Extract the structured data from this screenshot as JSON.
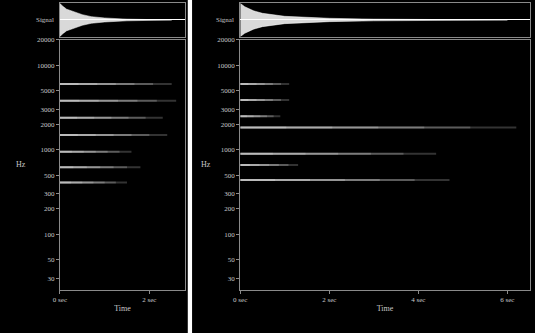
{
  "chart_data": [
    {
      "type": "spectrogram",
      "x_label": "Time",
      "y_label": "Hz",
      "signal_label": "Signal",
      "log": "y",
      "grid": false,
      "xlim": [
        0,
        2.8
      ],
      "xticks": [
        {
          "value": 0,
          "label": "0 sec"
        },
        {
          "value": 2,
          "label": "2 sec"
        }
      ],
      "ylim": [
        22,
        20000
      ],
      "yticks": [
        30,
        50,
        100,
        200,
        300,
        500,
        1000,
        2000,
        3000,
        5000,
        10000,
        20000
      ],
      "signal": {
        "x": [
          0,
          0.05,
          0.15,
          0.3,
          0.5,
          0.7,
          1.0,
          1.5,
          2.0,
          2.5
        ],
        "upper": [
          1,
          0.85,
          0.65,
          0.5,
          0.32,
          0.2,
          0.12,
          0.05,
          0.02,
          0
        ],
        "lower": [
          -1,
          -0.85,
          -0.65,
          -0.5,
          -0.32,
          -0.2,
          -0.12,
          -0.05,
          -0.02,
          0
        ],
        "ylim": [
          -1,
          1
        ]
      },
      "partials": [
        {
          "frequency": 6000,
          "end": 2.5
        },
        {
          "frequency": 3800,
          "end": 2.6
        },
        {
          "frequency": 2400,
          "end": 2.3
        },
        {
          "frequency": 1500,
          "end": 2.4
        },
        {
          "frequency": 950,
          "end": 1.6
        },
        {
          "frequency": 620,
          "end": 1.8
        },
        {
          "frequency": 410,
          "end": 1.5
        }
      ]
    },
    {
      "type": "spectrogram",
      "x_label": "Time",
      "y_label": "Hz",
      "signal_label": "Signal",
      "log": "y",
      "grid": false,
      "xlim": [
        0,
        6.5
      ],
      "xticks": [
        {
          "value": 0,
          "label": "0 sec"
        },
        {
          "value": 2,
          "label": "2 sec"
        },
        {
          "value": 4,
          "label": "4 sec"
        },
        {
          "value": 6,
          "label": "6 sec"
        }
      ],
      "ylim": [
        22,
        20000
      ],
      "yticks": [
        30,
        50,
        100,
        200,
        300,
        500,
        1000,
        2000,
        3000,
        5000,
        10000,
        20000
      ],
      "signal": {
        "x": [
          0,
          0.1,
          0.3,
          0.5,
          1.0,
          1.5,
          2.0,
          3.0,
          4.0,
          5.0,
          6.0
        ],
        "upper": [
          1,
          0.8,
          0.55,
          0.4,
          0.22,
          0.15,
          0.1,
          0.05,
          0.03,
          0.01,
          0
        ],
        "lower": [
          -1,
          -0.8,
          -0.55,
          -0.4,
          -0.22,
          -0.15,
          -0.1,
          -0.05,
          -0.03,
          -0.01,
          0
        ],
        "ylim": [
          -1,
          1
        ]
      },
      "partials": [
        {
          "frequency": 6000,
          "end": 1.1
        },
        {
          "frequency": 3900,
          "end": 1.1
        },
        {
          "frequency": 2500,
          "end": 0.9
        },
        {
          "frequency": 1840,
          "end": 6.2
        },
        {
          "frequency": 900,
          "end": 4.4
        },
        {
          "frequency": 660,
          "end": 1.3
        },
        {
          "frequency": 440,
          "end": 4.7
        }
      ]
    }
  ]
}
